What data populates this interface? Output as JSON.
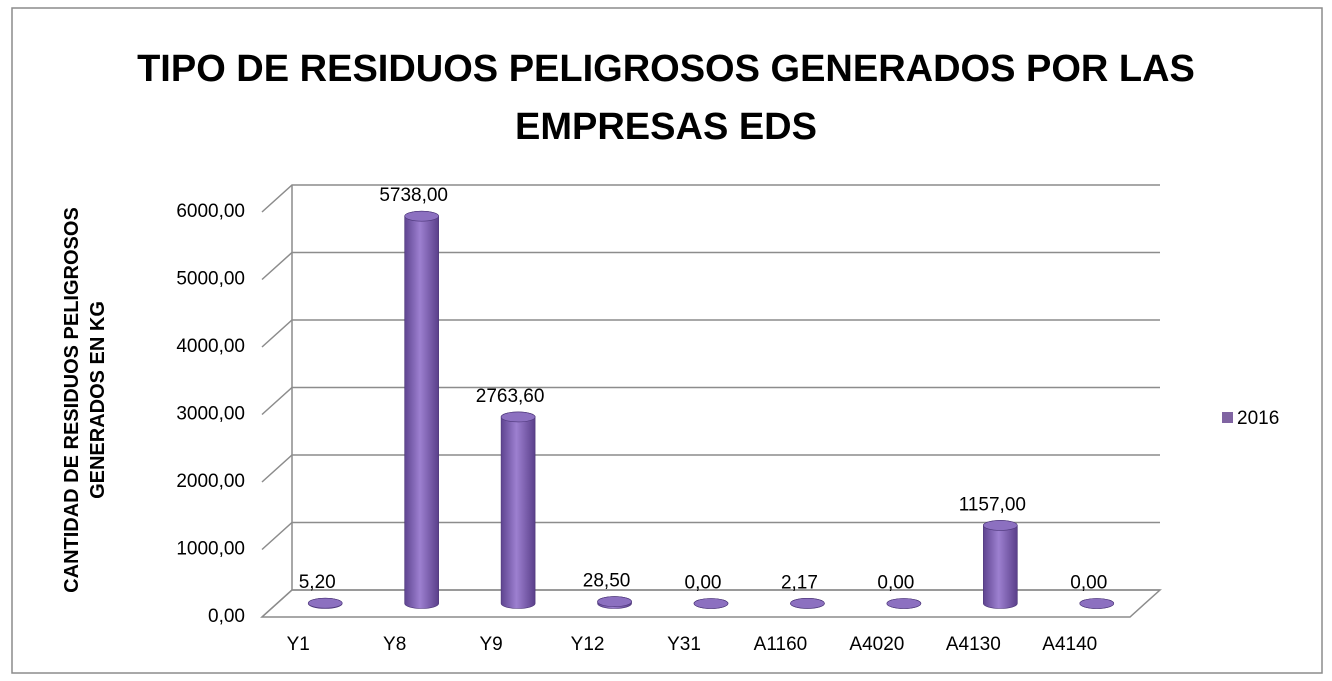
{
  "chart_data": {
    "type": "bar3d",
    "title": "TIPO DE RESIDUOS PELIGROSOS GENERADOS POR LAS EMPRESAS EDS",
    "y_label": "CANTIDAD DE RESIDUOS PELIGROSOS GENERADOS EN KG",
    "categories": [
      "Y1",
      "Y8",
      "Y9",
      "Y12",
      "Y31",
      "A1160",
      "A4020",
      "A4130",
      "A4140"
    ],
    "series": [
      {
        "name": "2016",
        "color": "#8064a2",
        "values": [
          5.2,
          5738,
          2763.6,
          28.5,
          0,
          2.17,
          0,
          1157,
          0
        ],
        "value_labels": [
          "5,20",
          "5738,00",
          "2763,60",
          "28,50",
          "0,00",
          "2,17",
          "0,00",
          "1157,00",
          "0,00"
        ]
      }
    ],
    "ylim": [
      0,
      6000
    ],
    "yticks": [
      {
        "value": 0,
        "label": "0,00"
      },
      {
        "value": 1000,
        "label": "1000,00"
      },
      {
        "value": 2000,
        "label": "2000,00"
      },
      {
        "value": 3000,
        "label": "3000,00"
      },
      {
        "value": 4000,
        "label": "4000,00"
      },
      {
        "value": 5000,
        "label": "5000,00"
      },
      {
        "value": 6000,
        "label": "6000,00"
      }
    ],
    "grid": true,
    "legend": "right"
  }
}
